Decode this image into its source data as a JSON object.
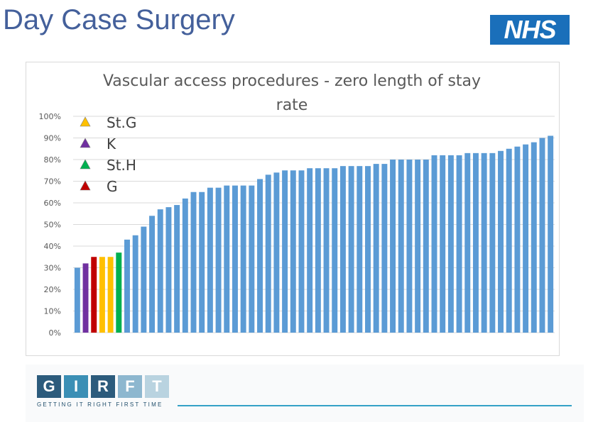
{
  "page": {
    "title": "Day Case Surgery",
    "logo_text": "NHS"
  },
  "chart_data": {
    "type": "bar",
    "title": "Vascular access procedures - zero length of stay rate",
    "title_lines": [
      "Vascular access procedures - zero length of stay",
      "rate"
    ],
    "ylim": [
      0,
      1
    ],
    "yticks": [
      0,
      0.1,
      0.2,
      0.3,
      0.4,
      0.5,
      0.6,
      0.7,
      0.8,
      0.9,
      1.0
    ],
    "ytick_labels": [
      "0%",
      "10%",
      "20%",
      "30%",
      "40%",
      "50%",
      "60%",
      "70%",
      "80%",
      "90%",
      "100%"
    ],
    "grid": true,
    "values": [
      0.3,
      0.32,
      0.35,
      0.35,
      0.35,
      0.37,
      0.43,
      0.45,
      0.49,
      0.54,
      0.57,
      0.58,
      0.59,
      0.62,
      0.65,
      0.65,
      0.67,
      0.67,
      0.68,
      0.68,
      0.68,
      0.68,
      0.71,
      0.73,
      0.74,
      0.75,
      0.75,
      0.75,
      0.76,
      0.76,
      0.76,
      0.76,
      0.77,
      0.77,
      0.77,
      0.77,
      0.78,
      0.78,
      0.8,
      0.8,
      0.8,
      0.8,
      0.8,
      0.82,
      0.82,
      0.82,
      0.82,
      0.83,
      0.83,
      0.83,
      0.83,
      0.84,
      0.85,
      0.86,
      0.87,
      0.88,
      0.9,
      0.91
    ],
    "default_color": "#5b9bd5",
    "highlights": [
      {
        "index": 1,
        "color": "#7030a0"
      },
      {
        "index": 2,
        "color": "#c00000"
      },
      {
        "index": 3,
        "color": "#ffc000"
      },
      {
        "index": 4,
        "color": "#ffc000"
      },
      {
        "index": 5,
        "color": "#00b050"
      }
    ],
    "legend": {
      "placement": "top-left",
      "entries": [
        {
          "label": "St.G",
          "color": "#ffc000"
        },
        {
          "label": "K",
          "color": "#7030a0"
        },
        {
          "label": "St.H",
          "color": "#00b050"
        },
        {
          "label": "G",
          "color": "#c00000"
        }
      ]
    }
  },
  "footer": {
    "letters": [
      "G",
      "I",
      "R",
      "F",
      "T"
    ],
    "colors": [
      "#2c5b7c",
      "#3b8fb5",
      "#2c5b7c",
      "#8db7cf",
      "#b9d3e0"
    ],
    "tagline": "GETTING IT RIGHT FIRST TIME"
  }
}
